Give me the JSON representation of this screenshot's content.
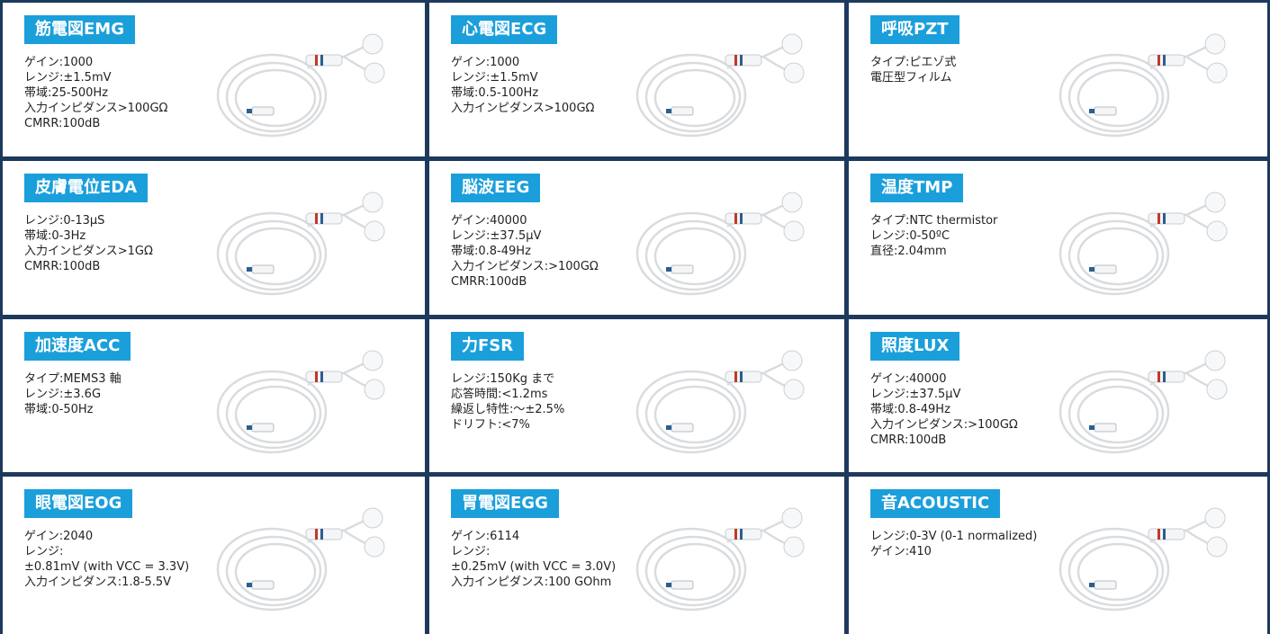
{
  "cards": [
    {
      "title": "筋電図EMG",
      "lines": [
        "ゲイン:1000",
        "レンジ:±1.5mV",
        "帯域:25-500Hz",
        "入力インピダンス>100GΩ",
        "CMRR:100dB"
      ]
    },
    {
      "title": "心電図ECG",
      "lines": [
        "ゲイン:1000",
        "レンジ:±1.5mV",
        "帯域:0.5-100Hz",
        "入力インピダンス>100GΩ"
      ]
    },
    {
      "title": "呼吸PZT",
      "lines": [
        "タイプ:ピエゾ式",
        "電圧型フィルム"
      ]
    },
    {
      "title": "皮膚電位EDA",
      "lines": [
        "レンジ:0-13μS",
        "帯域:0-3Hz",
        "入力インピダンス>1GΩ",
        "CMRR:100dB"
      ]
    },
    {
      "title": "脳波EEG",
      "lines": [
        "ゲイン:40000",
        "レンジ:±37.5μV",
        "帯域:0.8-49Hz",
        "入力インピダンス:>100GΩ",
        "CMRR:100dB"
      ]
    },
    {
      "title": "温度TMP",
      "lines": [
        "タイプ:NTC thermistor",
        "レンジ:0-50ºC",
        "直径:2.04mm"
      ]
    },
    {
      "title": "加速度ACC",
      "lines": [
        "タイプ:MEMS3 軸",
        "レンジ:±3.6G",
        "帯域:0-50Hz"
      ]
    },
    {
      "title": "力FSR",
      "lines": [
        "レンジ:150Kg まで",
        "応答時間:<1.2ms",
        "繰返し特性:～±2.5%",
        "ドリフト:<7%"
      ]
    },
    {
      "title": "照度LUX",
      "lines": [
        "ゲイン:40000",
        "レンジ:±37.5μV",
        "帯域:0.8-49Hz",
        "入力インピダンス:>100GΩ",
        "CMRR:100dB"
      ]
    },
    {
      "title": "眼電図EOG",
      "lines": [
        "ゲイン:2040",
        "レンジ:",
        "±0.81mV (with VCC = 3.3V)",
        "入力インピダンス:1.8-5.5V"
      ]
    },
    {
      "title": "胃電図EGG",
      "lines": [
        "ゲイン:6114",
        "レンジ:",
        "±0.25mV (with VCC = 3.0V)",
        "入力インピダンス:100 GOhm"
      ]
    },
    {
      "title": "音ACOUSTIC",
      "lines": [
        "レンジ:0-3V (0-1 normalized)",
        "ゲイン:410"
      ]
    }
  ]
}
